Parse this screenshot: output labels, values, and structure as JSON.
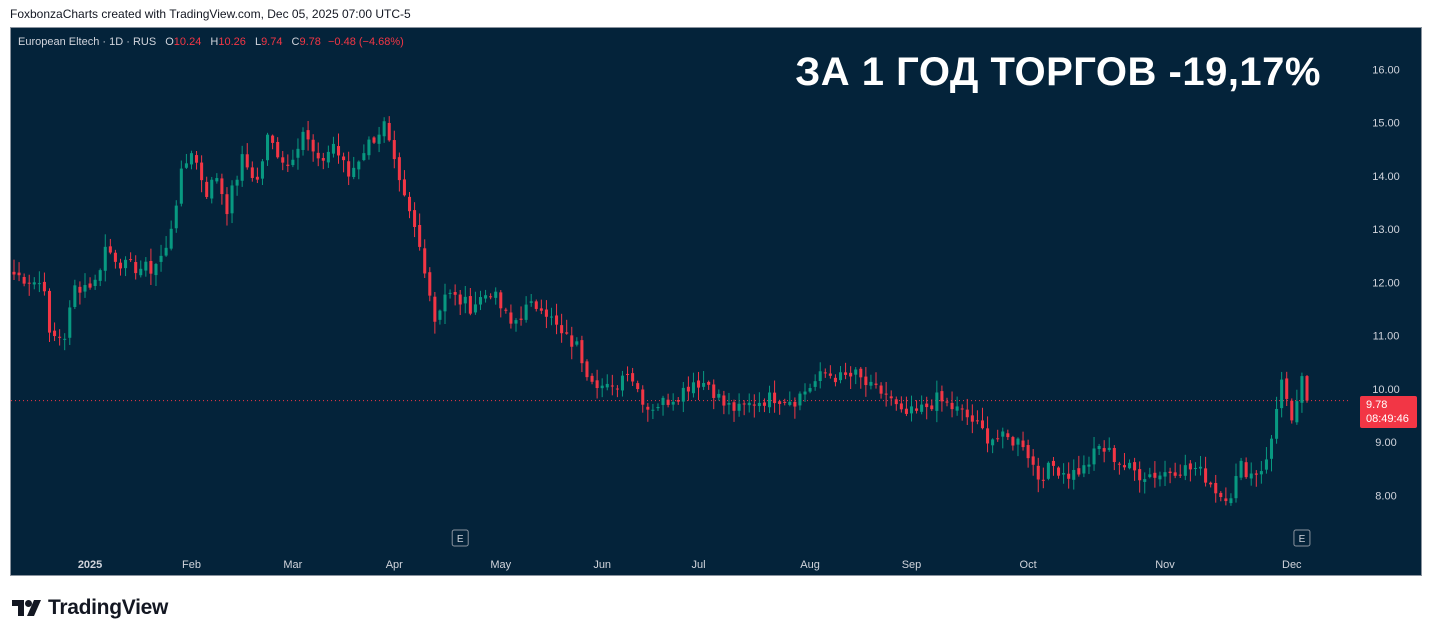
{
  "header": {
    "attribution": "FoxbonzaCharts created with TradingView.com, Dec 05, 2025 07:00 UTC-5"
  },
  "legend": {
    "symbol": "European Eltech · 1D · RUS",
    "o_label": "O",
    "o_value": "10.24",
    "h_label": "H",
    "h_value": "10.26",
    "l_label": "L",
    "l_value": "9.74",
    "c_label": "C",
    "c_value": "9.78",
    "change": "−0.48 (−4.68%)"
  },
  "headline": "ЗА 1 ГОД ТОРГОВ -19,17%",
  "price_tag": {
    "price": "9.78",
    "countdown": "08:49:46"
  },
  "brand": {
    "name": "TradingView"
  },
  "colors": {
    "background": "#04233a",
    "up": "#089981",
    "down": "#f23645",
    "axis_text": "#d1d4dc",
    "last_price_line": "#f23645"
  },
  "chart_data": {
    "type": "candlestick",
    "ylim": [
      7.2,
      16.4
    ],
    "y_ticks": [
      "16.00",
      "15.00",
      "14.00",
      "13.00",
      "12.00",
      "11.00",
      "10.00",
      "9.00",
      "8.00"
    ],
    "x_labels": [
      {
        "label": "2025",
        "index": 15
      },
      {
        "label": "Feb",
        "index": 35
      },
      {
        "label": "Mar",
        "index": 55
      },
      {
        "label": "Apr",
        "index": 75
      },
      {
        "label": "May",
        "index": 96
      },
      {
        "label": "Jun",
        "index": 116
      },
      {
        "label": "Jul",
        "index": 135
      },
      {
        "label": "Aug",
        "index": 157
      },
      {
        "label": "Sep",
        "index": 177
      },
      {
        "label": "Oct",
        "index": 200
      },
      {
        "label": "Nov",
        "index": 227
      },
      {
        "label": "Dec",
        "index": 252
      }
    ],
    "earnings_markers": [
      {
        "label": "E",
        "index": 88
      },
      {
        "label": "E",
        "index": 254
      }
    ],
    "last_price": 9.78,
    "anchors": [
      [
        0,
        12.15
      ],
      [
        6,
        11.95
      ],
      [
        7,
        10.95
      ],
      [
        10,
        11.0
      ],
      [
        12,
        11.9
      ],
      [
        16,
        12.0
      ],
      [
        18,
        12.65
      ],
      [
        22,
        12.3
      ],
      [
        27,
        12.25
      ],
      [
        30,
        12.6
      ],
      [
        33,
        14.0
      ],
      [
        35,
        14.5
      ],
      [
        38,
        13.7
      ],
      [
        40,
        14.0
      ],
      [
        42,
        13.4
      ],
      [
        45,
        14.3
      ],
      [
        48,
        13.9
      ],
      [
        50,
        14.7
      ],
      [
        54,
        14.2
      ],
      [
        57,
        14.85
      ],
      [
        60,
        14.2
      ],
      [
        63,
        14.6
      ],
      [
        66,
        14.0
      ],
      [
        69,
        14.5
      ],
      [
        73,
        14.95
      ],
      [
        76,
        13.8
      ],
      [
        79,
        13.0
      ],
      [
        81,
        12.3
      ],
      [
        83,
        11.3
      ],
      [
        85,
        11.8
      ],
      [
        90,
        11.55
      ],
      [
        94,
        11.85
      ],
      [
        98,
        11.2
      ],
      [
        101,
        11.5
      ],
      [
        104,
        11.6
      ],
      [
        108,
        11.0
      ],
      [
        111,
        10.8
      ],
      [
        113,
        10.35
      ],
      [
        116,
        10.05
      ],
      [
        118,
        9.95
      ],
      [
        121,
        10.4
      ],
      [
        123,
        10.0
      ],
      [
        125,
        9.65
      ],
      [
        128,
        9.75
      ],
      [
        131,
        9.9
      ],
      [
        134,
        10.15
      ],
      [
        137,
        10.1
      ],
      [
        140,
        9.7
      ],
      [
        143,
        9.6
      ],
      [
        146,
        9.75
      ],
      [
        150,
        9.85
      ],
      [
        154,
        9.8
      ],
      [
        157,
        10.05
      ],
      [
        160,
        10.3
      ],
      [
        163,
        10.2
      ],
      [
        166,
        10.25
      ],
      [
        169,
        10.0
      ],
      [
        172,
        9.9
      ],
      [
        175,
        9.5
      ],
      [
        178,
        9.55
      ],
      [
        182,
        9.8
      ],
      [
        186,
        9.6
      ],
      [
        189,
        9.4
      ],
      [
        192,
        9.1
      ],
      [
        196,
        9.05
      ],
      [
        199,
        9.0
      ],
      [
        202,
        8.35
      ],
      [
        205,
        8.55
      ],
      [
        208,
        8.4
      ],
      [
        211,
        8.5
      ],
      [
        214,
        8.9
      ],
      [
        216,
        8.8
      ],
      [
        219,
        8.55
      ],
      [
        222,
        8.4
      ],
      [
        226,
        8.4
      ],
      [
        229,
        8.5
      ],
      [
        233,
        8.5
      ],
      [
        235,
        8.35
      ],
      [
        238,
        8.0
      ],
      [
        240,
        8.05
      ],
      [
        242,
        8.55
      ],
      [
        244,
        8.4
      ],
      [
        246,
        8.5
      ],
      [
        248,
        9.0
      ],
      [
        250,
        10.25
      ],
      [
        252,
        9.3
      ],
      [
        254,
        10.24
      ],
      [
        255,
        9.78
      ]
    ]
  }
}
